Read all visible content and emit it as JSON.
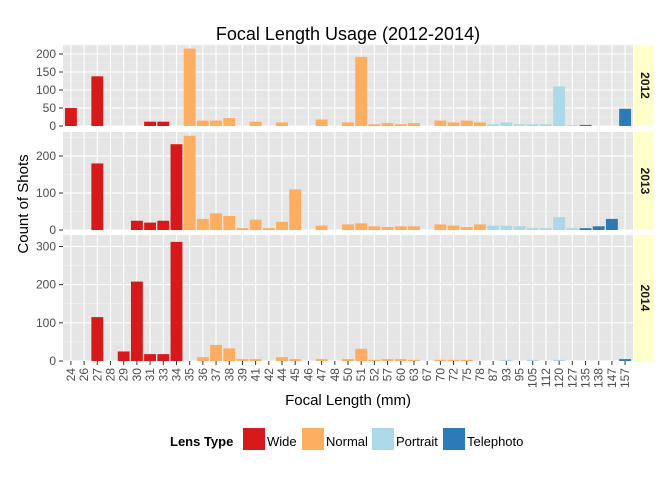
{
  "chart_data": {
    "type": "bar",
    "title": "Focal Length Usage (2012-2014)",
    "xlabel": "Focal Length (mm)",
    "ylabel": "Count of Shots",
    "categories": [
      "24",
      "26",
      "27",
      "28",
      "29",
      "30",
      "31",
      "33",
      "34",
      "35",
      "36",
      "37",
      "38",
      "39",
      "41",
      "42",
      "44",
      "45",
      "46",
      "47",
      "48",
      "50",
      "51",
      "52",
      "57",
      "60",
      "63",
      "67",
      "70",
      "72",
      "75",
      "78",
      "87",
      "93",
      "95",
      "105",
      "112",
      "120",
      "127",
      "135",
      "138",
      "147",
      "157"
    ],
    "category_types": [
      "Wide",
      "Wide",
      "Wide",
      "Wide",
      "Wide",
      "Wide",
      "Wide",
      "Wide",
      "Wide",
      "Normal",
      "Normal",
      "Normal",
      "Normal",
      "Normal",
      "Normal",
      "Normal",
      "Normal",
      "Normal",
      "Normal",
      "Normal",
      "Normal",
      "Normal",
      "Normal",
      "Normal",
      "Normal",
      "Normal",
      "Normal",
      "Normal",
      "Normal",
      "Normal",
      "Normal",
      "Normal",
      "Portrait",
      "Portrait",
      "Portrait",
      "Portrait",
      "Portrait",
      "Portrait",
      "Portrait",
      "Telephoto",
      "Telephoto",
      "Telephoto",
      "Telephoto"
    ],
    "legend": {
      "title": "Lens Type",
      "position": "bottom",
      "entries": [
        {
          "name": "Wide",
          "color": "#d7191c"
        },
        {
          "name": "Normal",
          "color": "#fdae61"
        },
        {
          "name": "Portrait",
          "color": "#abd9e9"
        },
        {
          "name": "Telephoto",
          "color": "#2c7bb6"
        }
      ]
    },
    "facets": [
      {
        "label": "2012",
        "ylim": [
          0,
          225
        ],
        "yticks": [
          0,
          50,
          100,
          150,
          200
        ],
        "values": [
          50,
          0,
          138,
          0,
          0,
          0,
          12,
          12,
          0,
          215,
          15,
          15,
          22,
          0,
          12,
          0,
          10,
          0,
          0,
          18,
          0,
          10,
          192,
          5,
          8,
          5,
          8,
          0,
          15,
          10,
          15,
          10,
          5,
          10,
          5,
          5,
          5,
          110,
          2,
          3,
          0,
          0,
          48
        ]
      },
      {
        "label": "2013",
        "ylim": [
          0,
          265
        ],
        "yticks": [
          0,
          100,
          200
        ],
        "values": [
          0,
          0,
          180,
          0,
          0,
          25,
          20,
          25,
          232,
          255,
          30,
          45,
          38,
          5,
          28,
          5,
          22,
          110,
          0,
          12,
          0,
          15,
          18,
          10,
          8,
          10,
          10,
          0,
          15,
          12,
          8,
          15,
          12,
          12,
          10,
          5,
          5,
          35,
          5,
          5,
          10,
          30,
          0
        ]
      },
      {
        "label": "2014",
        "ylim": [
          0,
          330
        ],
        "yticks": [
          0,
          100,
          200,
          300
        ],
        "values": [
          0,
          0,
          115,
          0,
          25,
          208,
          18,
          18,
          312,
          0,
          10,
          42,
          33,
          5,
          5,
          0,
          10,
          5,
          0,
          5,
          0,
          5,
          32,
          3,
          5,
          5,
          3,
          0,
          3,
          3,
          3,
          0,
          0,
          3,
          0,
          3,
          0,
          3,
          0,
          0,
          0,
          0,
          5
        ]
      }
    ],
    "grid": true
  }
}
